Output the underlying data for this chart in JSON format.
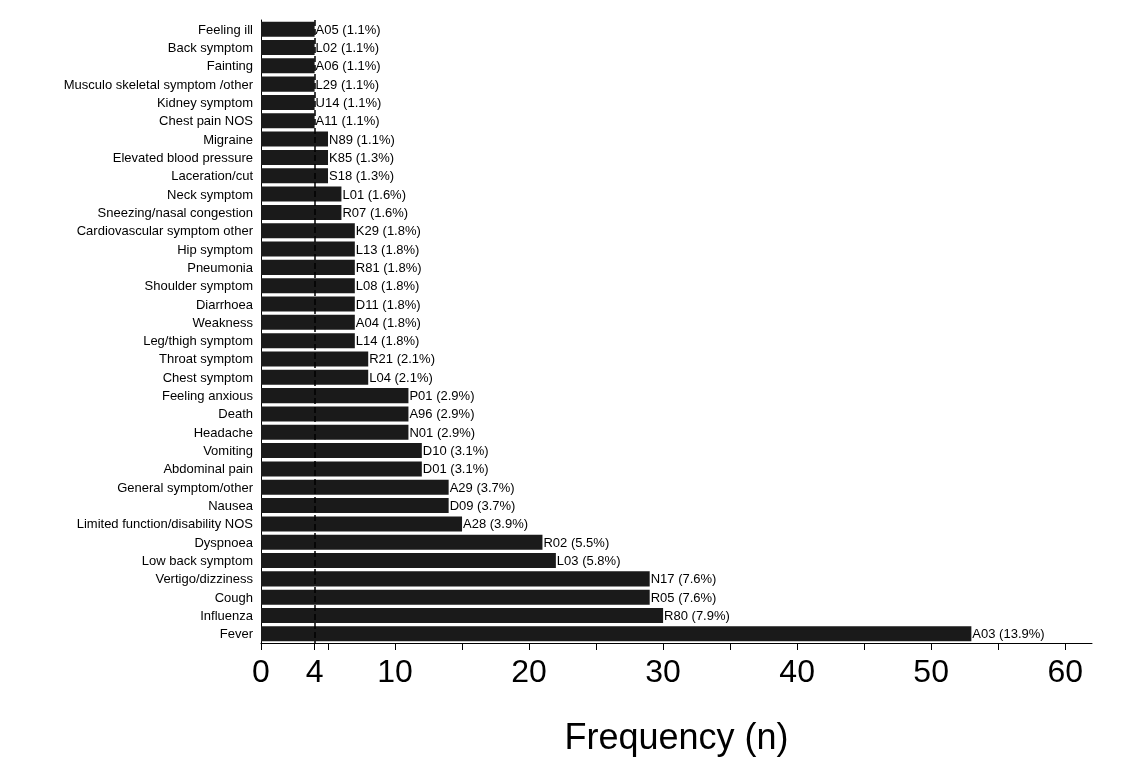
{
  "chart_data": {
    "type": "bar",
    "orientation": "horizontal",
    "xlabel": "Frequency (n)",
    "categories": [
      "Feeling ill",
      "Back symptom",
      "Fainting",
      "Musculo skeletal symptom /other",
      "Kidney symptom",
      "Chest pain NOS",
      "Migraine",
      "Elevated blood pressure",
      "Laceration/cut",
      "Neck symptom",
      "Sneezing/nasal congestion",
      "Cardiovascular symptom other",
      "Hip symptom",
      "Pneumonia",
      "Shoulder symptom",
      "Diarrhoea",
      "Weakness",
      "Leg/thigh symptom",
      "Throat symptom",
      "Chest symptom",
      "Feeling anxious",
      "Death",
      "Headache",
      "Vomiting",
      "Abdominal pain",
      "General symptom/other",
      "Nausea",
      "Limited function/disability NOS",
      "Dyspnoea",
      "Low back symptom",
      "Vertigo/dizziness",
      "Cough",
      "Influenza",
      "Fever"
    ],
    "values": [
      4,
      4,
      4,
      4,
      4,
      4,
      5,
      5,
      5,
      6,
      6,
      7,
      7,
      7,
      7,
      7,
      7,
      7,
      8,
      8,
      11,
      11,
      11,
      12,
      12,
      14,
      14,
      15,
      21,
      22,
      29,
      29,
      30,
      53
    ],
    "annotations": [
      {
        "text": "A05 (1.1%)",
        "x": 4,
        "y": "Feeling ill"
      },
      {
        "text": "L02 (1.1%)",
        "x": 4,
        "y": "Back symptom"
      },
      {
        "text": "A06 (1.1%)",
        "x": 4,
        "y": "Fainting"
      },
      {
        "text": "L29 (1.1%)",
        "x": 4,
        "y": "Musculo skeletal symptom /other"
      },
      {
        "text": "U14 (1.1%)",
        "x": 4,
        "y": "Kidney symptom"
      },
      {
        "text": "A11 (1.1%)",
        "x": 4,
        "y": "Chest pain NOS"
      },
      {
        "text": "N89 (1.1%)",
        "x": 5,
        "y": "Migraine"
      },
      {
        "text": "K85 (1.3%)",
        "x": 5,
        "y": "Elevated blood pressure"
      },
      {
        "text": "S18 (1.3%)",
        "x": 5,
        "y": "Laceration/cut"
      },
      {
        "text": "L01 (1.6%)",
        "x": 6,
        "y": "Neck symptom"
      },
      {
        "text": "R07 (1.6%)",
        "x": 6,
        "y": "Sneezing/nasal congestion"
      },
      {
        "text": "K29 (1.8%)",
        "x": 7,
        "y": "Cardiovascular symptom other"
      },
      {
        "text": "L13 (1.8%)",
        "x": 7,
        "y": "Hip symptom"
      },
      {
        "text": "R81 (1.8%)",
        "x": 7,
        "y": "Pneumonia"
      },
      {
        "text": "L08 (1.8%)",
        "x": 7,
        "y": "Shoulder symptom"
      },
      {
        "text": "D11 (1.8%)",
        "x": 7,
        "y": "Diarrhoea"
      },
      {
        "text": "A04 (1.8%)",
        "x": 7,
        "y": "Weakness"
      },
      {
        "text": "L14 (1.8%)",
        "x": 7,
        "y": "Leg/thigh symptom"
      },
      {
        "text": "R21 (2.1%)",
        "x": 8,
        "y": "Throat symptom"
      },
      {
        "text": "L04 (2.1%)",
        "x": 8,
        "y": "Chest symptom"
      },
      {
        "text": "P01 (2.9%)",
        "x": 11,
        "y": "Feeling anxious"
      },
      {
        "text": "A96 (2.9%)",
        "x": 11,
        "y": "Death"
      },
      {
        "text": "N01 (2.9%)",
        "x": 11,
        "y": "Headache"
      },
      {
        "text": "D10 (3.1%)",
        "x": 12,
        "y": "Vomiting"
      },
      {
        "text": "D01 (3.1%)",
        "x": 12,
        "y": "Abdominal pain"
      },
      {
        "text": "A29 (3.7%)",
        "x": 14,
        "y": "General symptom/other"
      },
      {
        "text": "D09 (3.7%)",
        "x": 14,
        "y": "Nausea"
      },
      {
        "text": "A28 (3.9%)",
        "x": 15,
        "y": "Limited function/disability NOS"
      },
      {
        "text": "R02 (5.5%)",
        "x": 21,
        "y": "Dyspnoea"
      },
      {
        "text": "L03 (5.8%)",
        "x": 22,
        "y": "Low back symptom"
      },
      {
        "text": "N17 (7.6%)",
        "x": 29,
        "y": "Vertigo/dizziness"
      },
      {
        "text": "R05 (7.6%)",
        "x": 29,
        "y": "Cough"
      },
      {
        "text": "R80 (7.9%)",
        "x": 30,
        "y": "Influenza"
      },
      {
        "text": "A03 (13.9%)",
        "x": 53,
        "y": "Fever"
      }
    ],
    "color": "#1a1a1a",
    "xlim": [
      0,
      62
    ],
    "xticks": [
      0,
      4,
      {
        "value": 5,
        "label": null
      },
      10,
      {
        "value": 15,
        "label": null
      },
      20,
      {
        "value": 25,
        "label": null
      },
      30,
      {
        "value": 35,
        "label": null
      },
      40,
      {
        "value": 45,
        "label": null
      },
      50,
      {
        "value": 55,
        "label": null
      },
      60
    ],
    "ref_lines": [
      {
        "axis": "x",
        "value": 4,
        "line_style": "dashed",
        "color": "#000000"
      }
    ],
    "grid": false
  }
}
